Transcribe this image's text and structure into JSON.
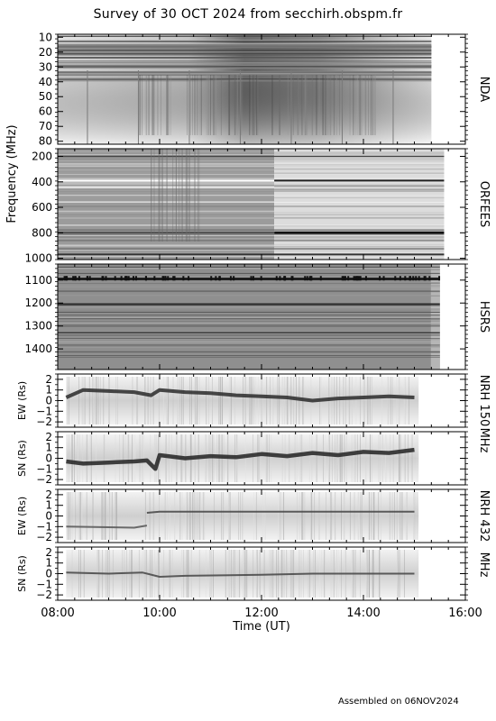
{
  "title": "Survey of 30 OCT 2024 from secchirh.obspm.fr",
  "footer": "Assembled on 06NOV2024",
  "chart_data": {
    "type": "heatmap",
    "shared_x": {
      "label": "Time (UT)",
      "range": [
        "08:00",
        "16:00"
      ],
      "ticks": [
        "08:00",
        "10:00",
        "12:00",
        "14:00",
        "16:00"
      ],
      "data_end": {
        "NDA": "15:20",
        "ORFEES": "15:35",
        "HSRS": "15:30",
        "NRH": "15:05"
      },
      "data_start": {
        "NRH": "08:10"
      }
    },
    "shared_y_label": "Frequency (MHz)",
    "colormap": "grayscale (darker = more intense)",
    "panels": [
      {
        "id": "nda",
        "instrument": "NDA",
        "y_ticks": [
          "10",
          "20",
          "30",
          "40",
          "50",
          "60",
          "70",
          "80"
        ],
        "y_range": [
          8,
          82
        ]
      },
      {
        "id": "orfees",
        "instrument": "ORFEES",
        "y_ticks": [
          "200",
          "400",
          "600",
          "800",
          "1000"
        ],
        "y_range": [
          140,
          1010
        ]
      },
      {
        "id": "hsrs",
        "instrument": "HSRS",
        "y_ticks": [
          "1100",
          "1200",
          "1300",
          "1400"
        ],
        "y_range": [
          1030,
          1490
        ]
      },
      {
        "id": "nrh150ew",
        "instrument": "NRH 150",
        "ylabel": "EW (Rs)",
        "y_ticks": [
          "2",
          "1",
          "0",
          "−1",
          "−2"
        ],
        "y_range": [
          -2.5,
          2.5
        ]
      },
      {
        "id": "nrh150sn",
        "instrument": "MHz",
        "ylabel": "SN (Rs)",
        "y_ticks": [
          "2",
          "1",
          "0",
          "−1",
          "−2"
        ],
        "y_range": [
          -2.5,
          2.5
        ]
      },
      {
        "id": "nrh432ew",
        "instrument": "NRH 432",
        "ylabel": "EW (Rs)",
        "y_ticks": [
          "2",
          "1",
          "0",
          "−1",
          "−2"
        ],
        "y_range": [
          -2.5,
          2.5
        ]
      },
      {
        "id": "nrh432sn",
        "instrument": "MHz",
        "ylabel": "SN (Rs)",
        "y_ticks": [
          "2",
          "1",
          "0",
          "−1",
          "−2"
        ],
        "y_range": [
          -2.5,
          2.5
        ]
      }
    ],
    "nrh_traces": {
      "nrh150ew": {
        "t": [
          "08:10",
          "08:30",
          "09:00",
          "09:30",
          "09:50",
          "10:00",
          "10:30",
          "11:00",
          "11:30",
          "12:00",
          "12:30",
          "13:00",
          "13:30",
          "14:00",
          "14:30",
          "15:00"
        ],
        "rs": [
          0.3,
          1.0,
          0.9,
          0.8,
          0.5,
          1.0,
          0.8,
          0.7,
          0.5,
          0.4,
          0.3,
          0.0,
          0.2,
          0.3,
          0.4,
          0.3
        ]
      },
      "nrh150sn": {
        "t": [
          "08:10",
          "08:30",
          "09:00",
          "09:30",
          "09:45",
          "09:55",
          "10:00",
          "10:30",
          "11:00",
          "11:30",
          "12:00",
          "12:30",
          "13:00",
          "13:30",
          "14:00",
          "14:30",
          "15:00"
        ],
        "rs": [
          -0.3,
          -0.5,
          -0.4,
          -0.3,
          -0.2,
          -1.0,
          0.3,
          0.0,
          0.2,
          0.1,
          0.4,
          0.2,
          0.5,
          0.3,
          0.6,
          0.5,
          0.8
        ]
      },
      "nrh432ew_a": {
        "t": [
          "08:10",
          "09:30",
          "09:45"
        ],
        "rs": [
          -1.0,
          -1.1,
          -0.9
        ]
      },
      "nrh432ew_b": {
        "t": [
          "09:45",
          "10:00",
          "12:00",
          "15:00"
        ],
        "rs": [
          0.3,
          0.4,
          0.4,
          0.4
        ]
      },
      "nrh432sn": {
        "t": [
          "08:10",
          "09:00",
          "09:40",
          "10:00",
          "10:30",
          "12:00",
          "13:00",
          "14:00",
          "15:00"
        ],
        "rs": [
          0.1,
          0.0,
          0.1,
          -0.3,
          -0.2,
          -0.1,
          0.0,
          0.0,
          0.0
        ]
      }
    },
    "labels": {
      "nda": "NDA",
      "orfees": "ORFEES",
      "hsrs": "HSRS",
      "nrh150_line1": "NRH 150",
      "nrh150_line2": "MHz",
      "nrh432_line1": "NRH 432",
      "nrh432_line2": "MHz",
      "ew": "EW (Rs)",
      "sn": "SN (Rs)"
    }
  }
}
